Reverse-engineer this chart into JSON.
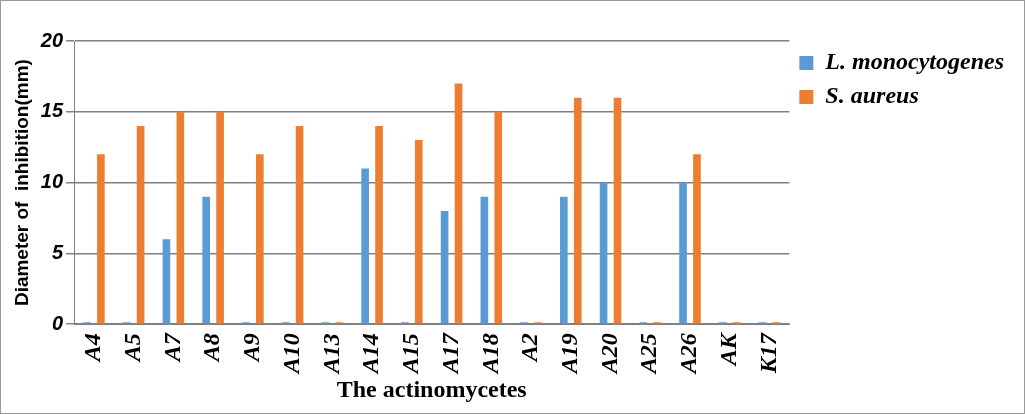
{
  "chart_data": {
    "type": "bar",
    "xlabel": "The actinomycetes",
    "ylabel": "Diameter of  inhibition(mm)",
    "categories": [
      "A4",
      "A5",
      "A7",
      "A8",
      "A9",
      "A10",
      "A13",
      "A14",
      "A15",
      "A17",
      "A18",
      "A2",
      "A19",
      "A20",
      "A25",
      "A26",
      "AK",
      "K17"
    ],
    "series": [
      {
        "name": "L. monocytogenes",
        "color": "#5b9bd5",
        "values": [
          0,
          0,
          6,
          9,
          0,
          0,
          0,
          11,
          0,
          8,
          9,
          0,
          9,
          10,
          0,
          10,
          0,
          0
        ]
      },
      {
        "name": "S. aureus",
        "color": "#ed7d31",
        "values": [
          12,
          14,
          15,
          15,
          12,
          14,
          0,
          14,
          13,
          17,
          15,
          0,
          16,
          16,
          0,
          12,
          0,
          0
        ]
      }
    ],
    "ylim": [
      0,
      20
    ],
    "yticks": [
      0,
      5,
      10,
      15,
      20
    ],
    "grid": "y",
    "legend": "top right"
  }
}
